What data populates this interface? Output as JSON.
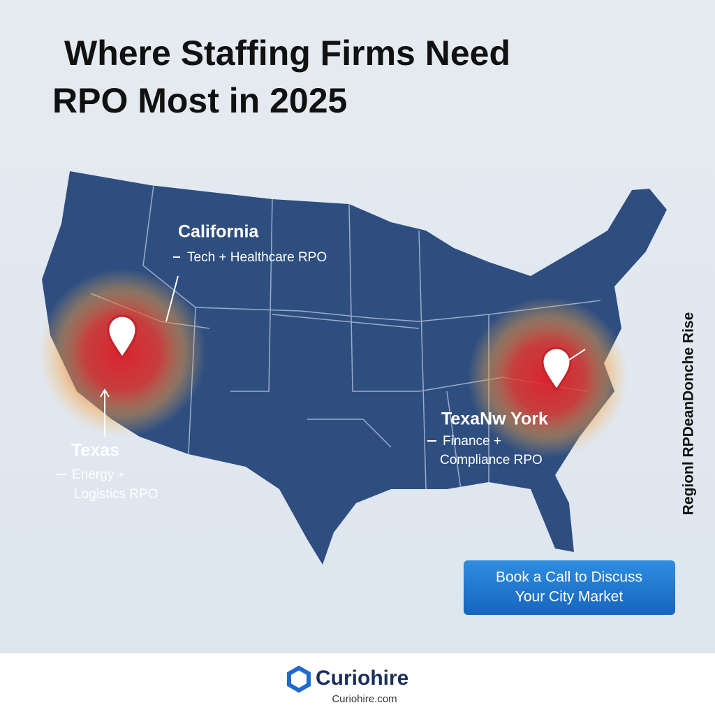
{
  "header": {
    "title_lines": [
      "Where Staffing Firms Need",
      "RPO Most in 2025"
    ]
  },
  "callouts": [
    {
      "name": "California",
      "details": [
        "Tech + Healthcare RPO"
      ]
    },
    {
      "name": "Texas",
      "details": [
        "Energy +",
        "Logistics RPO"
      ]
    },
    {
      "name": "TexaNw York",
      "details": [
        "Finance +",
        "Compliance RPO"
      ]
    }
  ],
  "side_label": "Regionl RPDeanDonche Rise",
  "button": {
    "lines": [
      "Book a Call to Discuss",
      "Your City Market"
    ]
  },
  "footer": {
    "brand": "Curiohire",
    "url": "Curiohire.com"
  }
}
